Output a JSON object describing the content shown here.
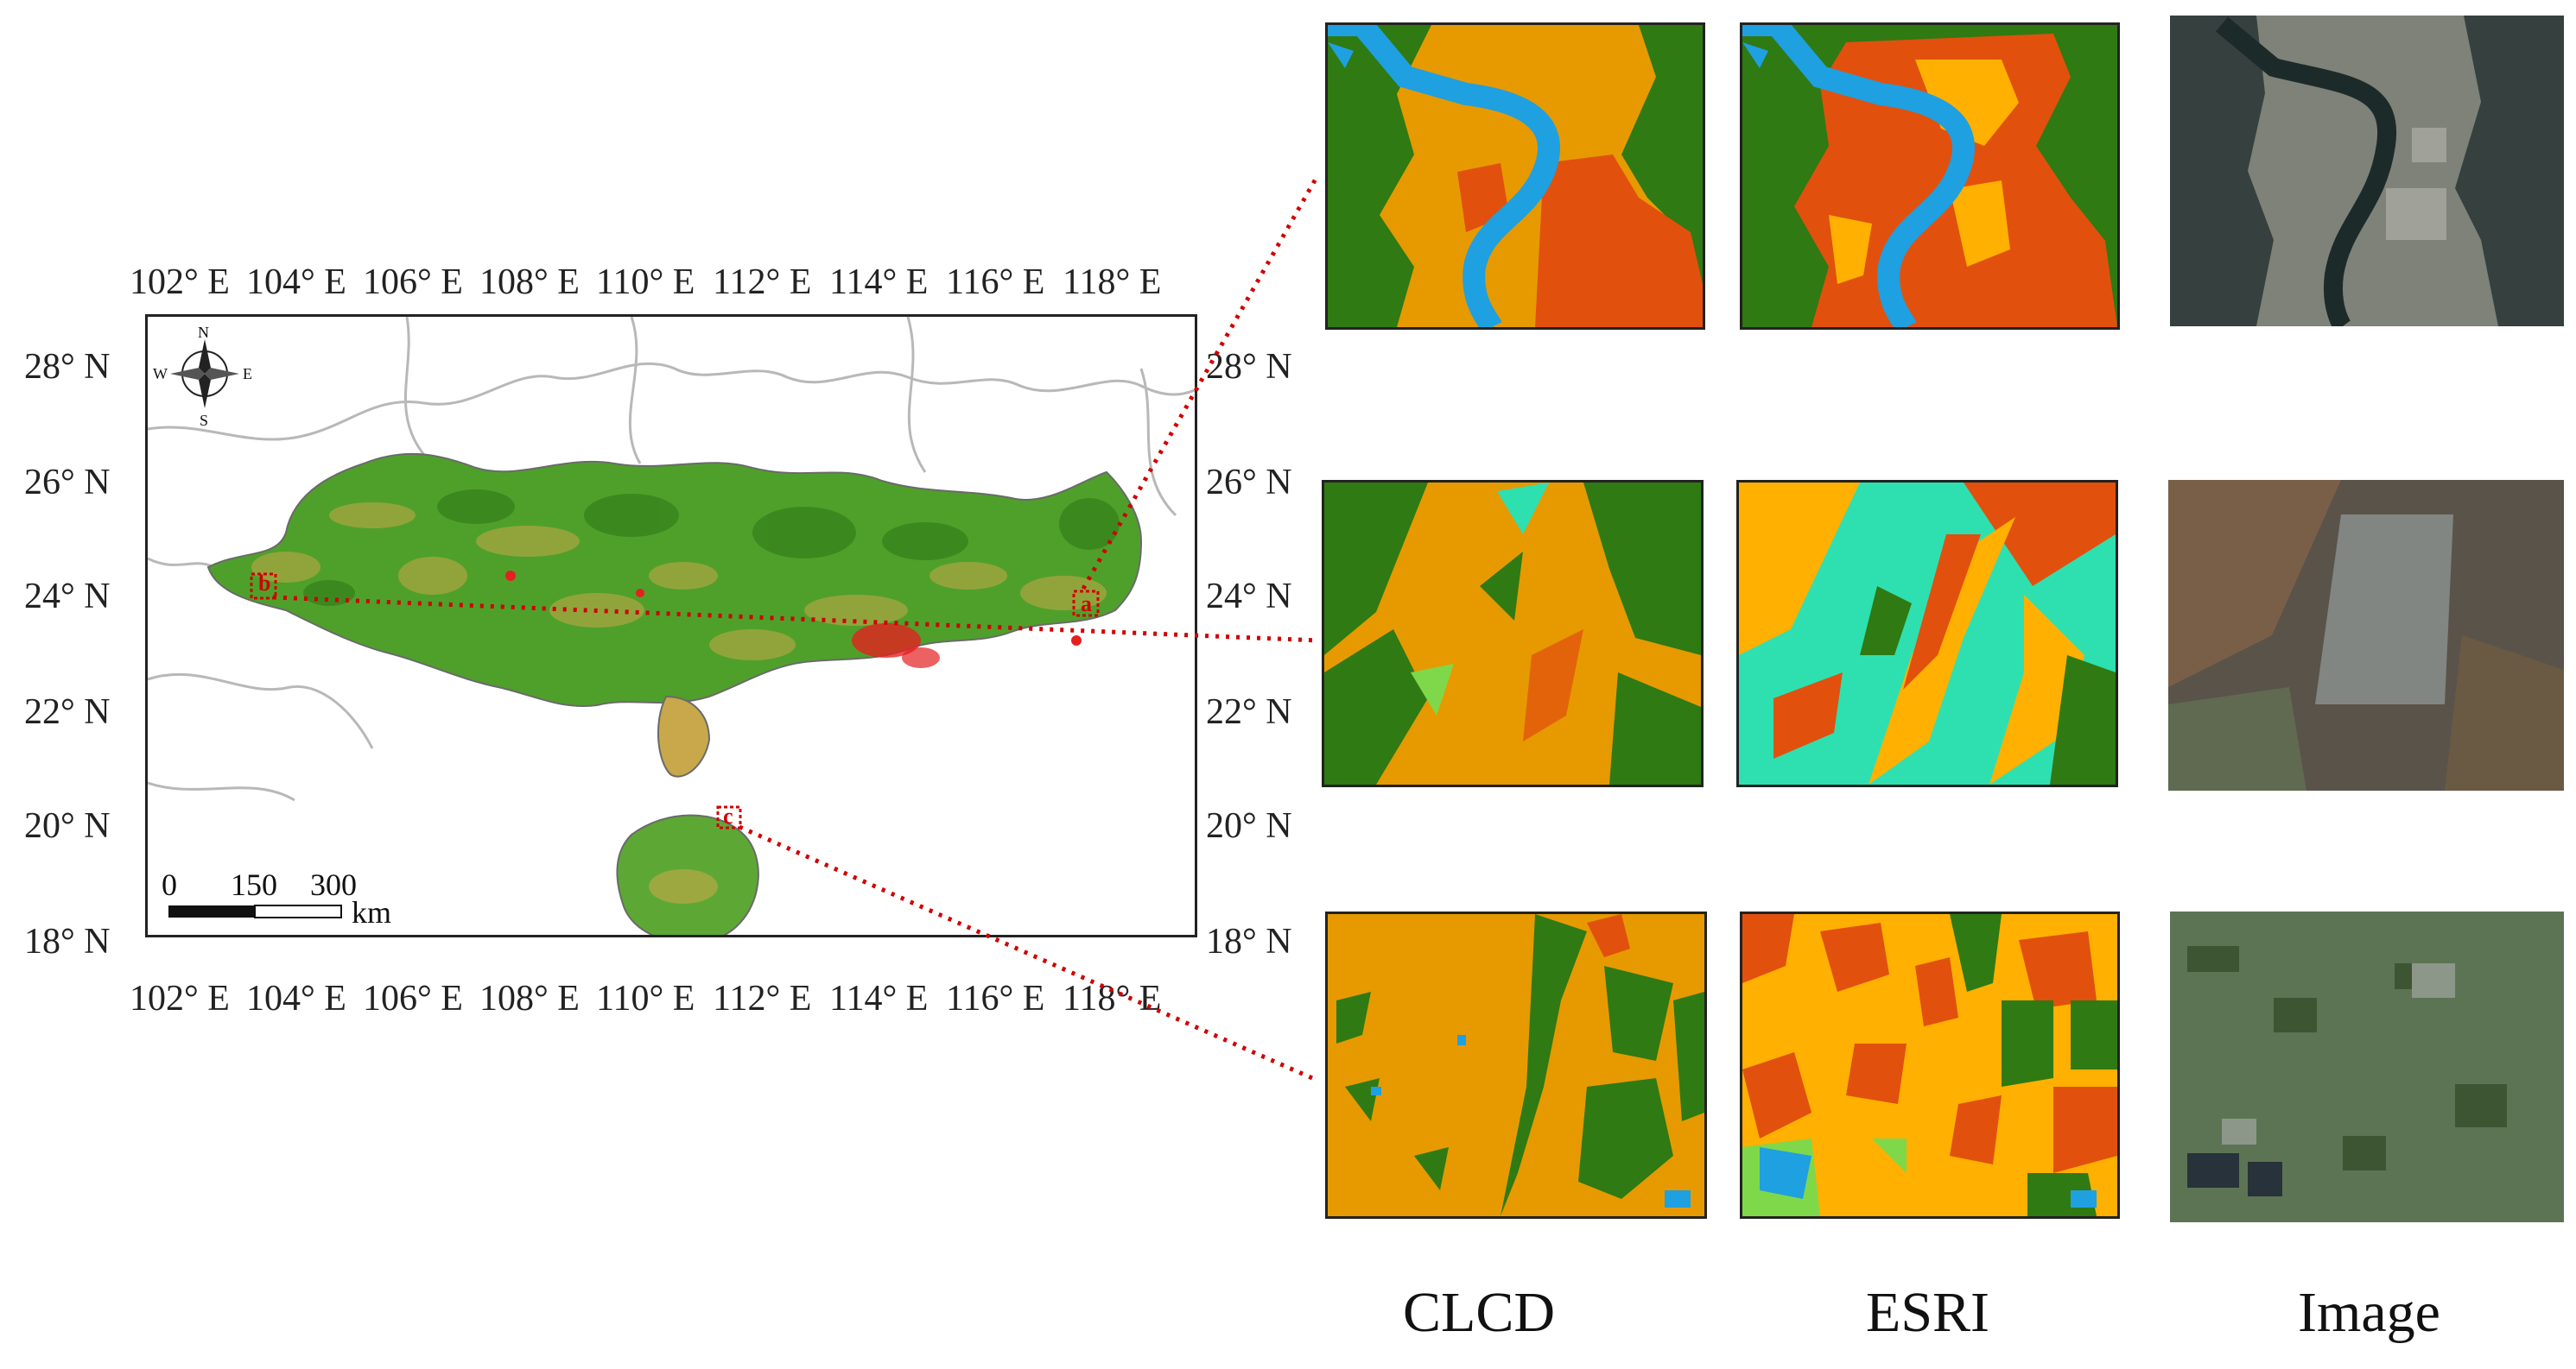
{
  "map": {
    "lon_labels": [
      "102° E",
      "104° E",
      "106° E",
      "108° E",
      "110° E",
      "112° E",
      "114° E",
      "116° E",
      "118° E"
    ],
    "lat_labels": [
      "28° N",
      "26° N",
      "24° N",
      "22° N",
      "20° N",
      "18° N"
    ],
    "scale_bar": {
      "labels": [
        "0",
        "150",
        "300"
      ],
      "unit": "km"
    },
    "compass": {
      "n": "N",
      "s": "S",
      "e": "E",
      "w": "W"
    },
    "site_markers": [
      "a",
      "b",
      "c"
    ]
  },
  "columns": [
    "CLCD",
    "ESRI",
    "Image"
  ],
  "colors": {
    "forest": "#2f7a12",
    "cropland": "#e69a00",
    "impervious": "#e2500e",
    "water": "#1fa0e0",
    "grassland": "#7fd84a",
    "shrub": "#2ee0b0",
    "cropland_esri": "#ffb000",
    "callout": "#d10000"
  }
}
